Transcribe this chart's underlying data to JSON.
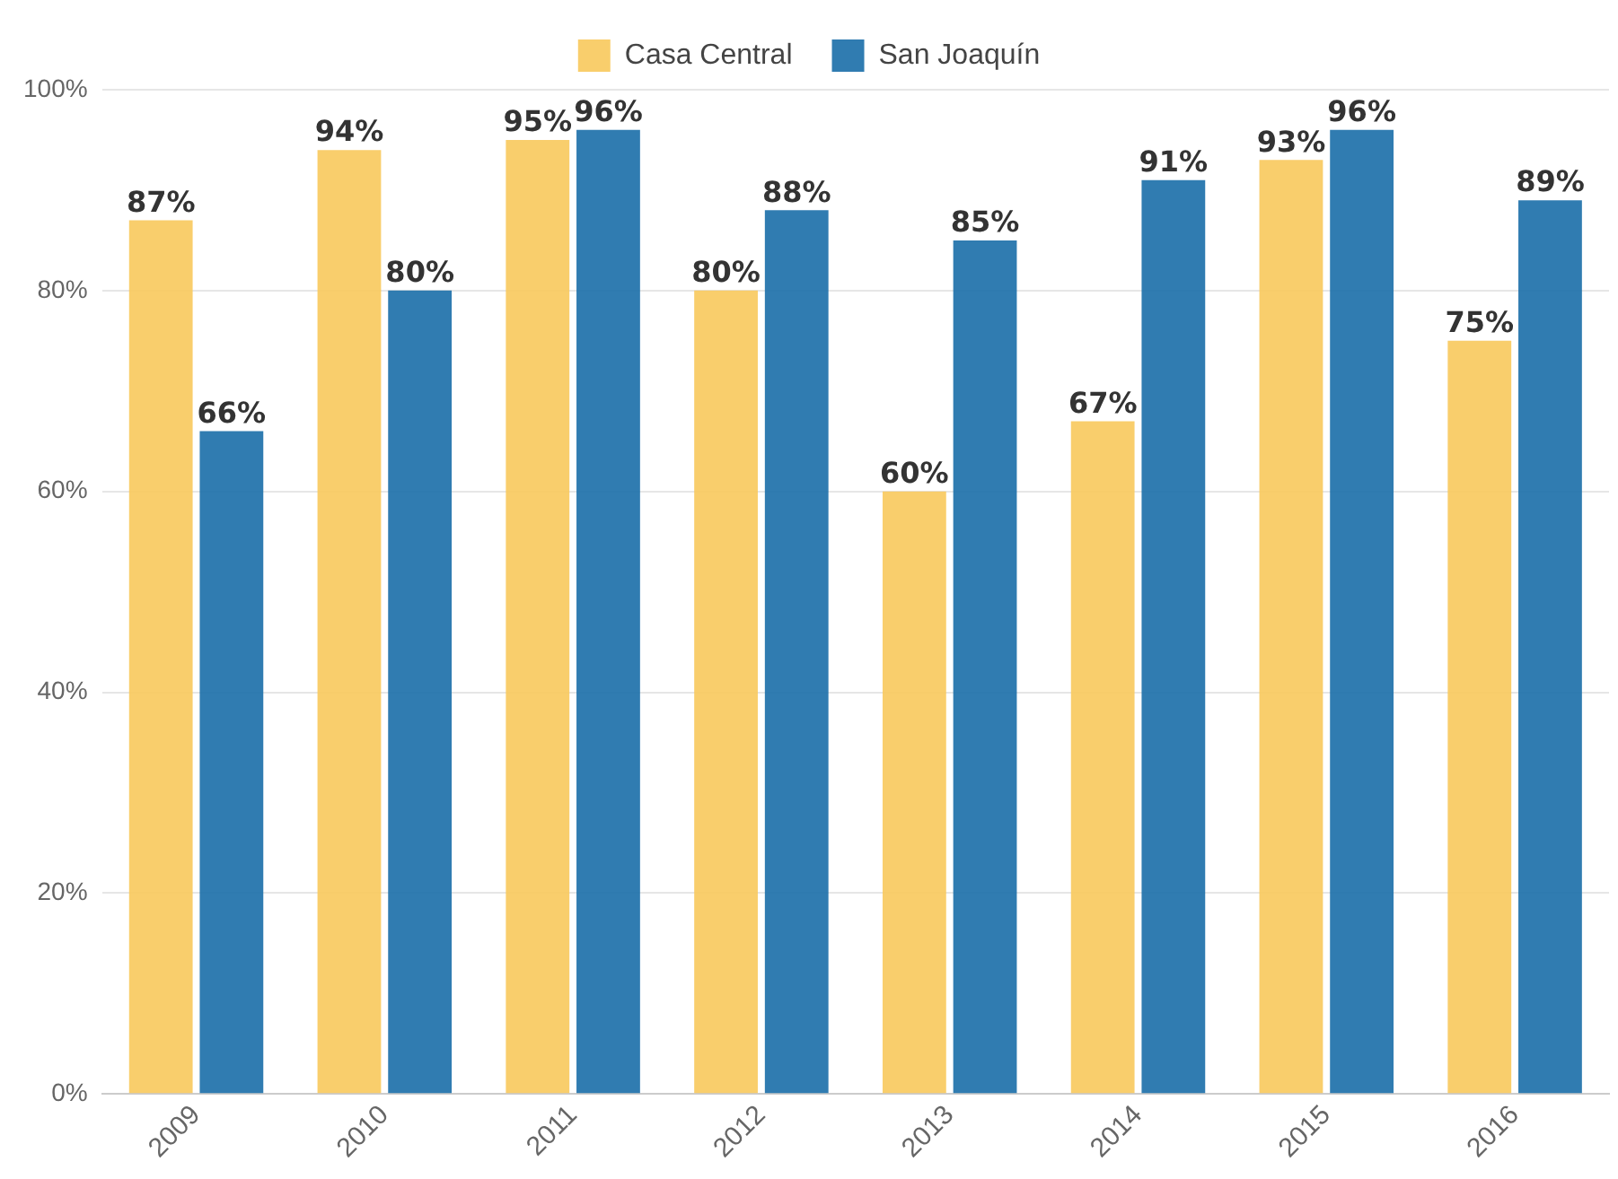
{
  "chart_data": {
    "type": "bar",
    "categories": [
      "2009",
      "2010",
      "2011",
      "2012",
      "2013",
      "2014",
      "2015",
      "2016"
    ],
    "series": [
      {
        "name": "Casa Central",
        "color": "#f8c95c",
        "values": [
          87,
          94,
          95,
          80,
          60,
          67,
          93,
          75
        ],
        "value_labels": [
          "87%",
          "94%",
          "95%",
          "80%",
          "60%",
          "67%",
          "93%",
          "75%"
        ]
      },
      {
        "name": "San Joaquín",
        "color": "#1a6ea8",
        "values": [
          66,
          80,
          96,
          88,
          85,
          91,
          96,
          89
        ],
        "value_labels": [
          "66%",
          "80%",
          "96%",
          "88%",
          "85%",
          "91%",
          "96%",
          "89%"
        ]
      }
    ],
    "ylim": [
      0,
      100
    ],
    "yticks": [
      {
        "value": 0,
        "label": "0%"
      },
      {
        "value": 20,
        "label": "20%"
      },
      {
        "value": 40,
        "label": "40%"
      },
      {
        "value": 60,
        "label": "60%"
      },
      {
        "value": 80,
        "label": "80%"
      },
      {
        "value": 100,
        "label": "100%"
      }
    ],
    "grid": "y",
    "legend": "top"
  }
}
